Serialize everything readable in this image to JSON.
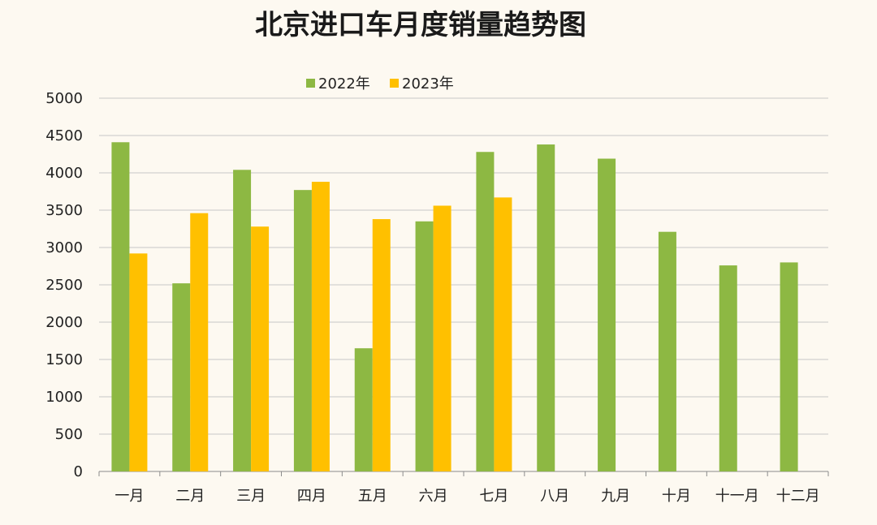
{
  "chart_data": {
    "type": "bar",
    "title": "北京进口车月度销量趋势图",
    "categories": [
      "一月",
      "二月",
      "三月",
      "四月",
      "五月",
      "六月",
      "七月",
      "八月",
      "九月",
      "十月",
      "十一月",
      "十二月"
    ],
    "series": [
      {
        "name": "2022年",
        "color": "#8db843",
        "values": [
          4410,
          2520,
          4040,
          3770,
          1650,
          3350,
          4280,
          4380,
          4190,
          3210,
          2760,
          2800
        ]
      },
      {
        "name": "2023年",
        "color": "#ffc000",
        "values": [
          2920,
          3460,
          3280,
          3880,
          3380,
          3560,
          3670,
          null,
          null,
          null,
          null,
          null
        ]
      }
    ],
    "ylim": [
      0,
      5000
    ],
    "yticks": [
      0,
      500,
      1000,
      1500,
      2000,
      2500,
      3000,
      3500,
      4000,
      4500,
      5000
    ],
    "grid": true,
    "legend": "top-center",
    "xlabel": "",
    "ylabel": ""
  }
}
